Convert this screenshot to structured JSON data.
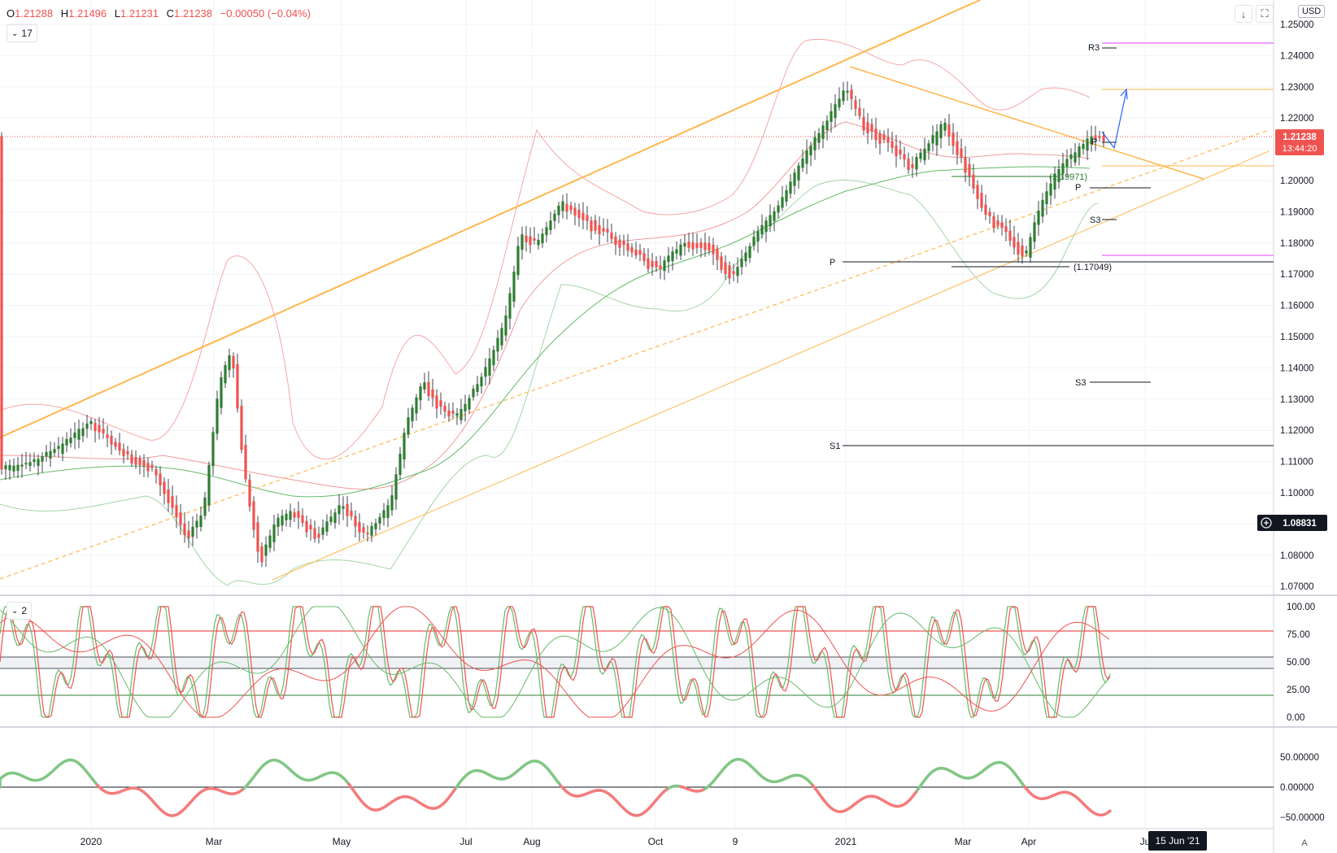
{
  "legend": {
    "open_label": "O",
    "open": "1.21288",
    "high_label": "H",
    "high": "1.21496",
    "low_label": "L",
    "low": "1.21231",
    "close_label": "C",
    "close": "1.21238",
    "change": "−0.00050 (−0.04%)"
  },
  "main_indicator_pill": "17",
  "stoch_pill": "2",
  "currency": "USD",
  "toolbar": {
    "down_icon": "arrow-down-icon",
    "fullscreen_icon": "fullscreen-icon"
  },
  "price_axis": {
    "ticks": [
      "1.25000",
      "1.24000",
      "1.23000",
      "1.22000",
      "1.21000",
      "1.20000",
      "1.19000",
      "1.18000",
      "1.17000",
      "1.16000",
      "1.15000",
      "1.14000",
      "1.13000",
      "1.12000",
      "1.11000",
      "1.10000",
      "1.09000",
      "1.08000",
      "1.07000"
    ],
    "current_price": "1.21238",
    "countdown": "13:44:20",
    "crosshair_price": "1.08831",
    "current_color": "#ef5350"
  },
  "stoch_axis": {
    "ticks": [
      "100.00",
      "75.00",
      "50.00",
      "25.00",
      "0.00"
    ]
  },
  "osc_axis": {
    "ticks": [
      "50.00000",
      "0.00000",
      "−50.00000"
    ]
  },
  "time_axis": {
    "labels": [
      "2020",
      "Mar",
      "May",
      "Jul",
      "Aug",
      "Oct",
      "9",
      "2021",
      "Mar",
      "Apr",
      "Ju"
    ],
    "highlight": "15 Jun '21",
    "auto_label": "A"
  },
  "pivot_labels": {
    "r3": "R3",
    "p_upper": "P",
    "p_mid": "P",
    "s3_upper": "S3",
    "p_left": "P",
    "s3_lower": "S3",
    "s1": "S1",
    "val_upper": "(1.19971)",
    "val_lower": "(1.17049)"
  },
  "colors": {
    "up": "#26a69a",
    "up_alt": "#2e7d32",
    "down": "#ef5350",
    "channel": "#ffb74d",
    "bb_upper": "#f8a5a5",
    "bb_lower": "#a5d6a7",
    "ma_red": "#ef9a9a",
    "ma_green": "#66bb6a",
    "magenta": "#e040fb",
    "osc_pos": "#81c784",
    "osc_neg": "#f47c7c"
  }
}
